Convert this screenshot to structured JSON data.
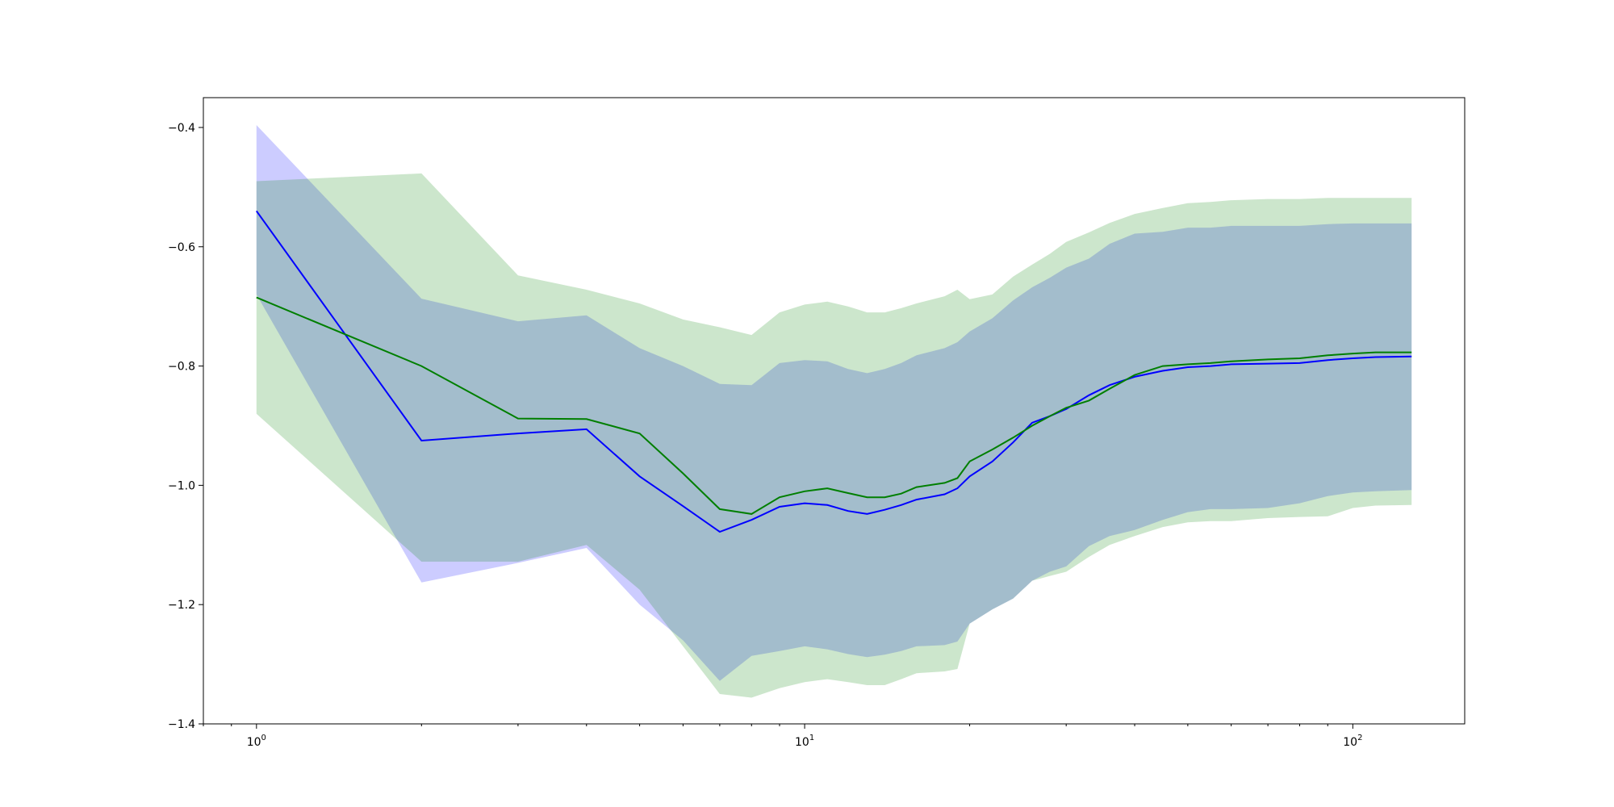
{
  "chart_data": {
    "type": "line",
    "title": "",
    "xlabel": "",
    "ylabel": "",
    "x_scale": "log",
    "xlim": [
      0.8,
      160
    ],
    "ylim": [
      -1.4,
      -0.35
    ],
    "grid": false,
    "legend": "none",
    "y_ticks": [
      {
        "value": -0.4,
        "label": "−0.4"
      },
      {
        "value": -0.6,
        "label": "−0.6"
      },
      {
        "value": -0.8,
        "label": "−0.8"
      },
      {
        "value": -1.0,
        "label": "−1.0"
      },
      {
        "value": -1.2,
        "label": "−1.2"
      },
      {
        "value": -1.4,
        "label": "−1.4"
      }
    ],
    "x_ticks": [
      {
        "value": 1,
        "base": "10",
        "exp": "0"
      },
      {
        "value": 10,
        "base": "10",
        "exp": "1"
      },
      {
        "value": 100,
        "base": "10",
        "exp": "2"
      }
    ],
    "series": [
      {
        "color": "#0000ff",
        "band_color": "#0000ff",
        "band_opacity": 0.2,
        "x": [
          1,
          2,
          3,
          4,
          5,
          6,
          7,
          8,
          9,
          10,
          11,
          12,
          13,
          14,
          15,
          16,
          18,
          19,
          20,
          22,
          24,
          26,
          28,
          30,
          33,
          36,
          40,
          45,
          50,
          55,
          60,
          70,
          80,
          90,
          100,
          110,
          128
        ],
        "y": [
          -0.54,
          -0.925,
          -0.913,
          -0.906,
          -0.985,
          -1.035,
          -1.078,
          -1.058,
          -1.036,
          -1.03,
          -1.033,
          -1.043,
          -1.048,
          -1.041,
          -1.033,
          -1.024,
          -1.015,
          -1.005,
          -0.985,
          -0.96,
          -0.928,
          -0.895,
          -0.884,
          -0.872,
          -0.849,
          -0.832,
          -0.818,
          -0.808,
          -0.802,
          -0.8,
          -0.797,
          -0.796,
          -0.795,
          -0.79,
          -0.787,
          -0.785,
          -0.784
        ],
        "lower": [
          -0.68,
          -1.163,
          -1.13,
          -1.105,
          -1.2,
          -1.26,
          -1.328,
          -1.286,
          -1.278,
          -1.27,
          -1.275,
          -1.283,
          -1.288,
          -1.284,
          -1.278,
          -1.27,
          -1.268,
          -1.262,
          -1.232,
          -1.208,
          -1.19,
          -1.16,
          -1.145,
          -1.136,
          -1.102,
          -1.085,
          -1.075,
          -1.058,
          -1.045,
          -1.04,
          -1.04,
          -1.038,
          -1.03,
          -1.018,
          -1.012,
          -1.01,
          -1.008
        ],
        "upper": [
          -0.396,
          -0.687,
          -0.725,
          -0.715,
          -0.77,
          -0.8,
          -0.83,
          -0.832,
          -0.795,
          -0.79,
          -0.792,
          -0.805,
          -0.812,
          -0.805,
          -0.795,
          -0.782,
          -0.77,
          -0.76,
          -0.742,
          -0.72,
          -0.69,
          -0.668,
          -0.652,
          -0.635,
          -0.62,
          -0.595,
          -0.578,
          -0.575,
          -0.568,
          -0.568,
          -0.565,
          -0.565,
          -0.565,
          -0.562,
          -0.561,
          -0.561,
          -0.561
        ]
      },
      {
        "color": "#007f00",
        "band_color": "#008000",
        "band_opacity": 0.2,
        "x": [
          1,
          2,
          3,
          4,
          5,
          6,
          7,
          8,
          9,
          10,
          11,
          12,
          13,
          14,
          15,
          16,
          18,
          19,
          20,
          22,
          24,
          26,
          28,
          30,
          33,
          36,
          40,
          45,
          50,
          55,
          60,
          70,
          80,
          90,
          100,
          110,
          128
        ],
        "y": [
          -0.685,
          -0.8,
          -0.888,
          -0.889,
          -0.913,
          -0.98,
          -1.04,
          -1.048,
          -1.02,
          -1.01,
          -1.005,
          -1.013,
          -1.02,
          -1.02,
          -1.014,
          -1.003,
          -0.996,
          -0.988,
          -0.96,
          -0.94,
          -0.92,
          -0.9,
          -0.884,
          -0.87,
          -0.858,
          -0.838,
          -0.815,
          -0.8,
          -0.797,
          -0.795,
          -0.792,
          -0.789,
          -0.787,
          -0.782,
          -0.779,
          -0.777,
          -0.777
        ],
        "lower": [
          -0.88,
          -1.128,
          -1.128,
          -1.1,
          -1.175,
          -1.27,
          -1.35,
          -1.356,
          -1.34,
          -1.33,
          -1.325,
          -1.33,
          -1.335,
          -1.335,
          -1.325,
          -1.315,
          -1.312,
          -1.308,
          -1.232,
          -1.208,
          -1.19,
          -1.16,
          -1.152,
          -1.145,
          -1.12,
          -1.1,
          -1.085,
          -1.07,
          -1.062,
          -1.06,
          -1.06,
          -1.055,
          -1.053,
          -1.052,
          -1.038,
          -1.034,
          -1.033
        ],
        "upper": [
          -0.49,
          -0.477,
          -0.648,
          -0.672,
          -0.695,
          -0.722,
          -0.735,
          -0.748,
          -0.71,
          -0.697,
          -0.692,
          -0.7,
          -0.71,
          -0.71,
          -0.703,
          -0.695,
          -0.683,
          -0.672,
          -0.688,
          -0.68,
          -0.65,
          -0.63,
          -0.612,
          -0.592,
          -0.576,
          -0.56,
          -0.545,
          -0.535,
          -0.527,
          -0.525,
          -0.522,
          -0.52,
          -0.52,
          -0.518,
          -0.518,
          -0.518,
          -0.518
        ]
      }
    ]
  }
}
